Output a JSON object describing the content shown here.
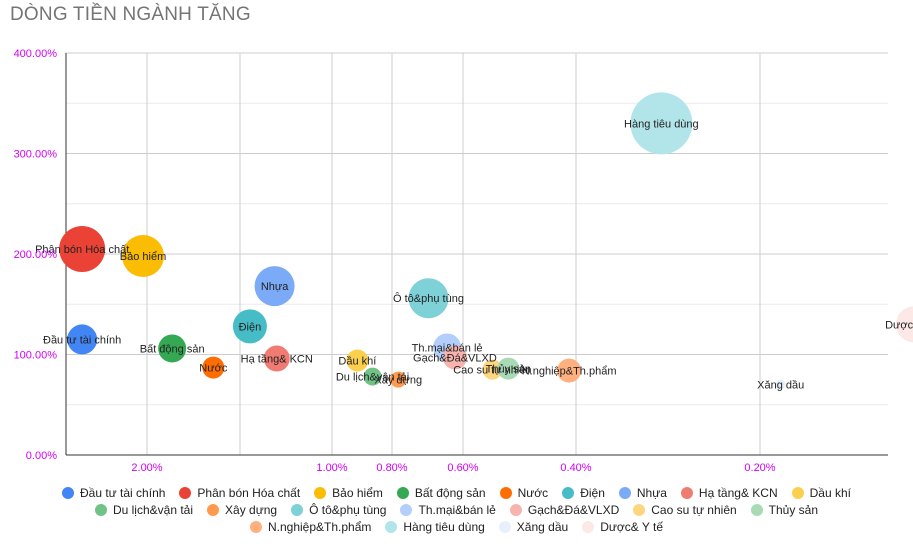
{
  "chart_data": {
    "type": "bubble",
    "title": "DÒNG TIỀN NGÀNH TĂNG",
    "x_scale": "log-reversed",
    "x_ticks": [
      "2.00%",
      "1.00%",
      "0.80%",
      "0.60%",
      "0.40%",
      "0.20%"
    ],
    "y_ticks": [
      "0.00%",
      "100.00%",
      "200.00%",
      "300.00%",
      "400.00%"
    ],
    "ylim": [
      0,
      400
    ],
    "grid": true,
    "legend_position": "bottom",
    "series": [
      {
        "name": "Đầu tư tài chính",
        "x": 2.55,
        "y": 115,
        "size": 30,
        "color": "#4285f4"
      },
      {
        "name": "Phân bón Hóa chất",
        "x": 2.55,
        "y": 205,
        "size": 46,
        "color": "#ea4335"
      },
      {
        "name": "Bảo hiểm",
        "x": 2.03,
        "y": 198,
        "size": 42,
        "color": "#fbbc04"
      },
      {
        "name": "Bất động sản",
        "x": 1.82,
        "y": 106,
        "size": 28,
        "color": "#34a853"
      },
      {
        "name": "Nước",
        "x": 1.56,
        "y": 87,
        "size": 22,
        "color": "#ff6d01"
      },
      {
        "name": "Điện",
        "x": 1.36,
        "y": 128,
        "size": 34,
        "color": "#46bdc6"
      },
      {
        "name": "Nhựa",
        "x": 1.24,
        "y": 168,
        "size": 40,
        "color": "#7baaf7"
      },
      {
        "name": "Hạ tầng& KCN",
        "x": 1.23,
        "y": 96,
        "size": 26,
        "color": "#f07b72"
      },
      {
        "name": "Dầu khí",
        "x": 0.91,
        "y": 94,
        "size": 22,
        "color": "#fcd04f"
      },
      {
        "name": "Du lịch&vận tải",
        "x": 0.86,
        "y": 78,
        "size": 18,
        "color": "#71c287"
      },
      {
        "name": "Xây dựng",
        "x": 0.78,
        "y": 75,
        "size": 16,
        "color": "#ff994d"
      },
      {
        "name": "Ô tô&phụ tùng",
        "x": 0.69,
        "y": 156,
        "size": 40,
        "color": "#7ed1d7"
      },
      {
        "name": "Th.mại&bán lẻ",
        "x": 0.64,
        "y": 107,
        "size": 28,
        "color": "#b3cefb"
      },
      {
        "name": "Gạch&Đá&VLXD",
        "x": 0.62,
        "y": 97,
        "size": 24,
        "color": "#f7b4ae"
      },
      {
        "name": "Cao su tự nhiên",
        "x": 0.54,
        "y": 85,
        "size": 20,
        "color": "#fdd67e"
      },
      {
        "name": "Thủy sản",
        "x": 0.51,
        "y": 86,
        "size": 22,
        "color": "#a8dab5"
      },
      {
        "name": "N.nghiệp&Th.phẩm",
        "x": 0.41,
        "y": 84,
        "size": 24,
        "color": "#ffb07e"
      },
      {
        "name": "Hàng tiêu dùng",
        "x": 0.29,
        "y": 330,
        "size": 62,
        "color": "#b2e5e9"
      },
      {
        "name": "Xăng dầu",
        "x": 0.185,
        "y": 70,
        "size": 10,
        "color": "#e8f0fd"
      },
      {
        "name": "Dược& Y tế",
        "x": 0.112,
        "y": 130,
        "size": 36,
        "color": "#fce8e6"
      }
    ]
  }
}
